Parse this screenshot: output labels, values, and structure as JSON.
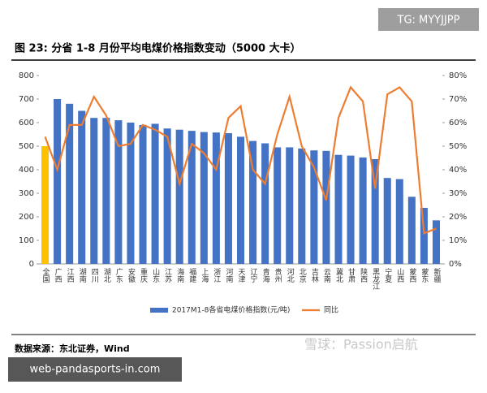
{
  "tag": "TG: MYYJJPP",
  "watermark": "雪球：Passion启航",
  "site": "web-pandasports-in.com",
  "chart_data": {
    "type": "bar_line",
    "title": "图 23: 分省 1-8 月份平均电煤价格指数变动（5000 大卡）",
    "source": "数据来源：东北证券，Wind",
    "categories": [
      "全国",
      "广西",
      "江西",
      "湖南",
      "四川",
      "湖北",
      "广东",
      "安徽",
      "重庆",
      "山东",
      "江苏",
      "海南",
      "福建",
      "上海",
      "浙江",
      "河南",
      "天津",
      "辽宁",
      "青海",
      "贵州",
      "河北",
      "北京",
      "吉林",
      "云南",
      "冀北",
      "甘肃",
      "陕西",
      "黑龙江",
      "宁夏",
      "山西",
      "蒙西",
      "蒙东",
      "新疆"
    ],
    "series": [
      {
        "name": "2017M1-8各省电煤价格指数(元/吨)",
        "color": "#4472c4",
        "colors": [
          "#ffc000",
          "#4472c4",
          "#4472c4",
          "#4472c4",
          "#4472c4",
          "#4472c4",
          "#4472c4",
          "#4472c4",
          "#4472c4",
          "#4472c4",
          "#4472c4",
          "#4472c4",
          "#4472c4",
          "#4472c4",
          "#4472c4",
          "#4472c4",
          "#4472c4",
          "#4472c4",
          "#4472c4",
          "#4472c4",
          "#4472c4",
          "#4472c4",
          "#4472c4",
          "#4472c4",
          "#4472c4",
          "#4472c4",
          "#4472c4",
          "#4472c4",
          "#4472c4",
          "#4472c4",
          "#4472c4",
          "#4472c4",
          "#4472c4"
        ],
        "values": [
          500,
          700,
          680,
          650,
          620,
          620,
          610,
          600,
          590,
          595,
          575,
          570,
          565,
          560,
          558,
          555,
          540,
          522,
          512,
          495,
          495,
          490,
          482,
          480,
          463,
          460,
          452,
          445,
          365,
          360,
          285,
          238,
          185
        ]
      },
      {
        "name": "同比",
        "color": "#ed7d31",
        "axis": "y2",
        "values": [
          54,
          40,
          59,
          59,
          71,
          63,
          50,
          51,
          59,
          57,
          54,
          34,
          51,
          47,
          40,
          62,
          67,
          40,
          34,
          55,
          71,
          50,
          41,
          27,
          62,
          75,
          69,
          32,
          72,
          75,
          69,
          13,
          15
        ]
      }
    ],
    "ylim": [
      0,
      800
    ],
    "yticks": [
      0,
      100,
      200,
      300,
      400,
      500,
      600,
      700,
      800
    ],
    "y2lim": [
      0,
      80
    ],
    "y2ticks": [
      {
        "value": 0,
        "label": "0%"
      },
      {
        "value": 10,
        "label": "10%"
      },
      {
        "value": 20,
        "label": "20%"
      },
      {
        "value": 30,
        "label": "30%"
      },
      {
        "value": 40,
        "label": "40%"
      },
      {
        "value": 50,
        "label": "50%"
      },
      {
        "value": 60,
        "label": "60%"
      },
      {
        "value": 70,
        "label": "70%"
      },
      {
        "value": 80,
        "label": "80%"
      }
    ],
    "grid": false,
    "legend": "bottom"
  }
}
